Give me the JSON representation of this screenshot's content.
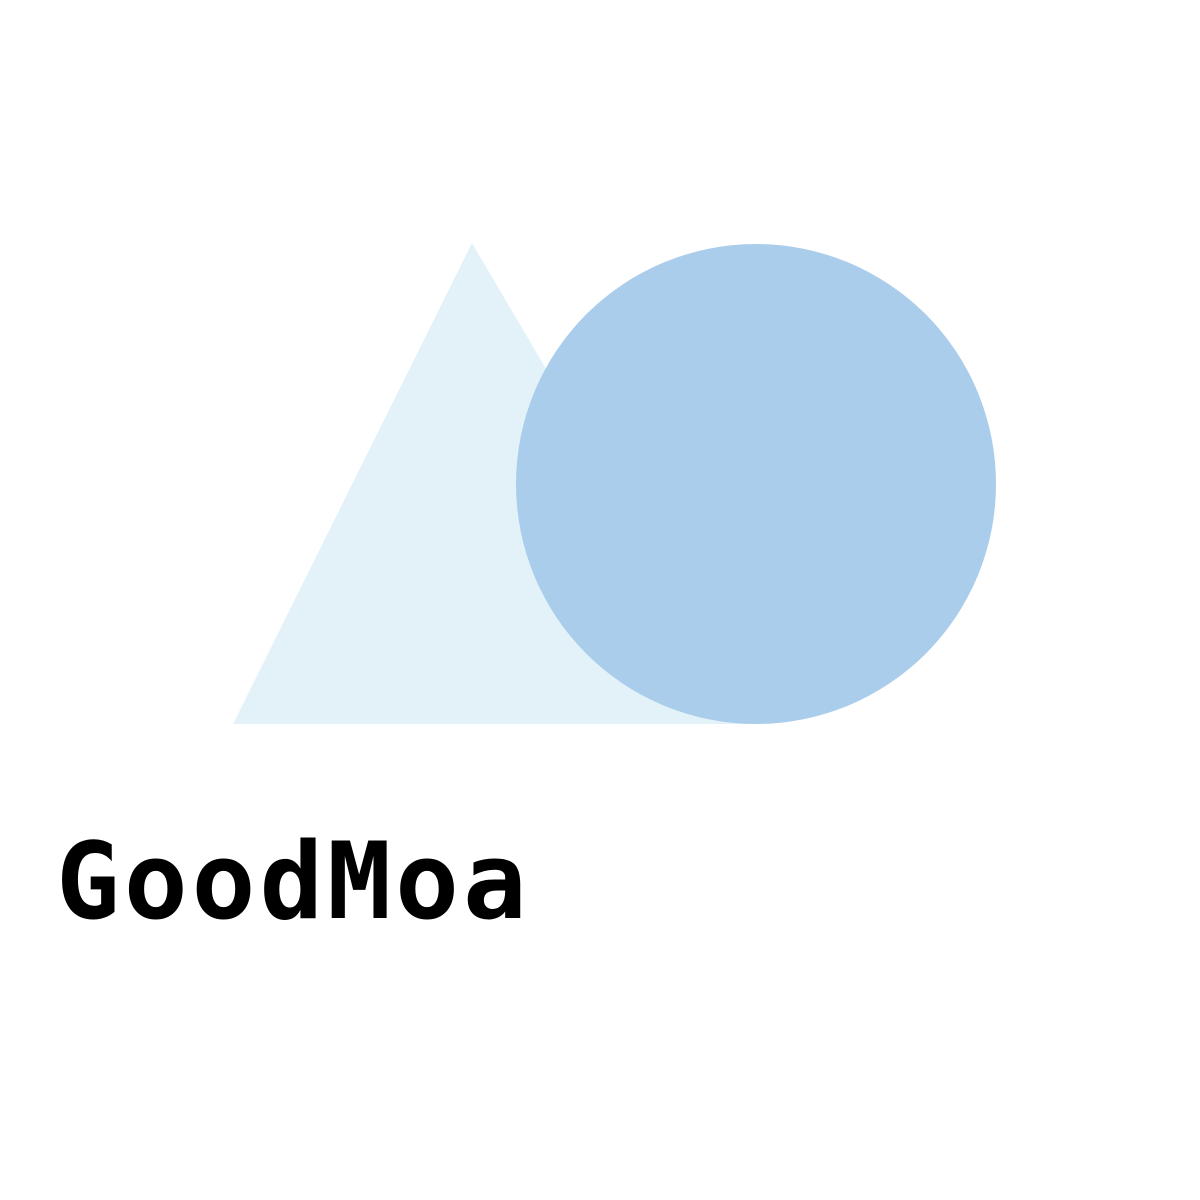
{
  "brand": {
    "name": "GoodMoa"
  },
  "colors": {
    "background": "#ffffff",
    "triangle": "#e3f2f9",
    "circle": "#aacdec",
    "text": "#000000"
  },
  "icons": [
    "triangle-shape",
    "circle-shape"
  ]
}
